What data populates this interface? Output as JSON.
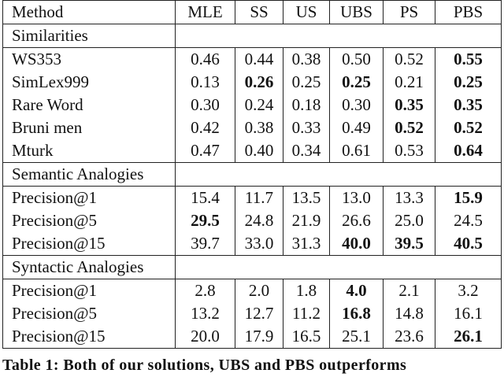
{
  "header": [
    "Method",
    "MLE",
    "SS",
    "US",
    "UBS",
    "PS",
    "PBS"
  ],
  "sections": [
    {
      "title": "Similarities",
      "rows": [
        {
          "cells": [
            "WS353",
            "0.46",
            "0.44",
            "0.38",
            "0.50",
            "0.52",
            "0.55"
          ],
          "bold": [
            6
          ]
        },
        {
          "cells": [
            "SimLex999",
            "0.13",
            "0.26",
            "0.25",
            "0.25",
            "0.21",
            "0.25"
          ],
          "bold": [
            2,
            4,
            6
          ]
        },
        {
          "cells": [
            "Rare Word",
            "0.30",
            "0.24",
            "0.18",
            "0.30",
            "0.35",
            "0.35"
          ],
          "bold": [
            5,
            6
          ]
        },
        {
          "cells": [
            "Bruni men",
            "0.42",
            "0.38",
            "0.33",
            "0.49",
            "0.52",
            "0.52"
          ],
          "bold": [
            5,
            6
          ]
        },
        {
          "cells": [
            "Mturk",
            "0.47",
            "0.40",
            "0.34",
            "0.61",
            "0.53",
            "0.64"
          ],
          "bold": [
            6
          ]
        }
      ]
    },
    {
      "title": "Semantic Analogies",
      "rows": [
        {
          "cells": [
            "Precision@1",
            "15.4",
            "11.7",
            "13.5",
            "13.0",
            "13.3",
            "15.9"
          ],
          "bold": [
            6
          ]
        },
        {
          "cells": [
            "Precision@5",
            "29.5",
            "24.8",
            "21.9",
            "26.6",
            "25.0",
            "24.5"
          ],
          "bold": [
            1
          ]
        },
        {
          "cells": [
            "Precision@15",
            "39.7",
            "33.0",
            "31.3",
            "40.0",
            "39.5",
            "40.5"
          ],
          "bold": [
            4,
            5,
            6
          ]
        }
      ]
    },
    {
      "title": "Syntactic Analogies",
      "rows": [
        {
          "cells": [
            "Precision@1",
            "2.8",
            "2.0",
            "1.8",
            "4.0",
            "2.1",
            "3.2"
          ],
          "bold": [
            4
          ]
        },
        {
          "cells": [
            "Precision@5",
            "13.2",
            "12.7",
            "11.2",
            "16.8",
            "14.8",
            "16.1"
          ],
          "bold": [
            4
          ]
        },
        {
          "cells": [
            "Precision@15",
            "20.0",
            "17.9",
            "16.5",
            "25.1",
            "23.6",
            "26.1"
          ],
          "bold": [
            6
          ]
        }
      ]
    }
  ],
  "caption": "Table 1: Both of our solutions, UBS and PBS outperforms"
}
